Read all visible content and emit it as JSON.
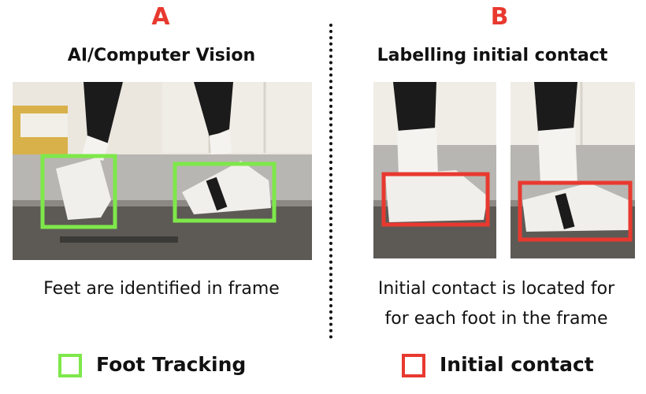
{
  "panel_a": {
    "letter": "A",
    "title": "AI/Computer Vision",
    "caption": "Feet are identified in frame"
  },
  "panel_b": {
    "letter": "B",
    "title": "Labelling initial contact",
    "caption_line1": "Initial contact is located for",
    "caption_line2": "for each foot in the frame"
  },
  "legend": {
    "foot_tracking_label": "Foot Tracking",
    "foot_tracking_color": "#7ee84a",
    "initial_contact_label": "Initial contact",
    "initial_contact_color": "#e8392f"
  },
  "colors": {
    "accent_red": "#e8392f",
    "tracking_green": "#7ee84a"
  }
}
